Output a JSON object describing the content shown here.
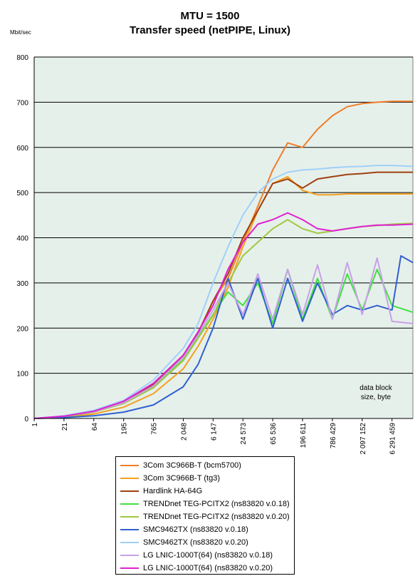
{
  "chart_data": {
    "type": "line",
    "title": "MTU = 1500",
    "subtitle": "Transfer speed (netPIPE, Linux)",
    "y_unit_label": "Mbit/sec",
    "annotation": [
      "data block",
      "size, byte"
    ],
    "ylim": [
      0,
      800
    ],
    "y_ticks": [
      "0",
      "100",
      "200",
      "300",
      "400",
      "500",
      "600",
      "700",
      "800"
    ],
    "x_ticks": [
      "1",
      "21",
      "64",
      "195",
      "765",
      "2 048",
      "6 147",
      "24 573",
      "65 536",
      "196 611",
      "786 429",
      "2 097 152",
      "6 291 459"
    ],
    "x_range": [
      0,
      12.7
    ],
    "grid": true,
    "plot_background": "#e6f0eb",
    "series": [
      {
        "name": "3Com 3C966B-T (bcm5700)",
        "color": "#f07d28",
        "points": [
          [
            0,
            0
          ],
          [
            1,
            5
          ],
          [
            2,
            15
          ],
          [
            3,
            35
          ],
          [
            4,
            75
          ],
          [
            5,
            140
          ],
          [
            5.5,
            190
          ],
          [
            6,
            260
          ],
          [
            6.5,
            310
          ],
          [
            7,
            390
          ],
          [
            7.5,
            470
          ],
          [
            8,
            550
          ],
          [
            8.5,
            610
          ],
          [
            9,
            600
          ],
          [
            9.5,
            640
          ],
          [
            10,
            670
          ],
          [
            10.5,
            690
          ],
          [
            11,
            697
          ],
          [
            11.5,
            700
          ],
          [
            12,
            702
          ],
          [
            12.7,
            702
          ]
        ]
      },
      {
        "name": "3Com 3C966B-T (tg3)",
        "color": "#f4a020",
        "points": [
          [
            0,
            0
          ],
          [
            1,
            3
          ],
          [
            2,
            10
          ],
          [
            3,
            25
          ],
          [
            4,
            55
          ],
          [
            5,
            110
          ],
          [
            5.5,
            160
          ],
          [
            6,
            220
          ],
          [
            6.5,
            290
          ],
          [
            7,
            380
          ],
          [
            7.5,
            460
          ],
          [
            8,
            520
          ],
          [
            8.5,
            535
          ],
          [
            9,
            505
          ],
          [
            9.5,
            495
          ],
          [
            10,
            495
          ],
          [
            10.5,
            497
          ],
          [
            11,
            497
          ],
          [
            11.5,
            497
          ],
          [
            12,
            497
          ],
          [
            12.7,
            497
          ]
        ]
      },
      {
        "name": "Hardlink HA-64G",
        "color": "#a04010",
        "points": [
          [
            0,
            0
          ],
          [
            1,
            5
          ],
          [
            2,
            15
          ],
          [
            3,
            35
          ],
          [
            4,
            75
          ],
          [
            5,
            140
          ],
          [
            5.5,
            190
          ],
          [
            6,
            260
          ],
          [
            6.5,
            320
          ],
          [
            7,
            400
          ],
          [
            7.5,
            460
          ],
          [
            8,
            520
          ],
          [
            8.5,
            530
          ],
          [
            9,
            510
          ],
          [
            9.5,
            530
          ],
          [
            10,
            535
          ],
          [
            10.5,
            540
          ],
          [
            11,
            542
          ],
          [
            11.5,
            545
          ],
          [
            12,
            545
          ],
          [
            12.7,
            545
          ]
        ]
      },
      {
        "name": "TRENDnet TEG-PCITX2 (ns83820 v.0.18)",
        "color": "#40e040",
        "points": [
          [
            0,
            0
          ],
          [
            1,
            5
          ],
          [
            2,
            15
          ],
          [
            3,
            35
          ],
          [
            4,
            70
          ],
          [
            5,
            130
          ],
          [
            5.5,
            180
          ],
          [
            6,
            230
          ],
          [
            6.5,
            280
          ],
          [
            7,
            250
          ],
          [
            7.5,
            300
          ],
          [
            8,
            210
          ],
          [
            8.5,
            330
          ],
          [
            9,
            220
          ],
          [
            9.5,
            310
          ],
          [
            10,
            220
          ],
          [
            10.5,
            320
          ],
          [
            11,
            240
          ],
          [
            11.5,
            330
          ],
          [
            12,
            250
          ],
          [
            12.7,
            235
          ]
        ]
      },
      {
        "name": "TRENDnet TEG-PCITX2 (ns83820 v.0.20)",
        "color": "#a0c840",
        "points": [
          [
            0,
            0
          ],
          [
            1,
            4
          ],
          [
            2,
            14
          ],
          [
            3,
            33
          ],
          [
            4,
            68
          ],
          [
            5,
            128
          ],
          [
            5.5,
            178
          ],
          [
            6,
            228
          ],
          [
            6.5,
            300
          ],
          [
            7,
            360
          ],
          [
            7.5,
            390
          ],
          [
            8,
            420
          ],
          [
            8.5,
            440
          ],
          [
            9,
            420
          ],
          [
            9.5,
            410
          ],
          [
            10,
            415
          ],
          [
            10.5,
            420
          ],
          [
            11,
            425
          ],
          [
            11.5,
            427
          ],
          [
            12,
            430
          ],
          [
            12.7,
            432
          ]
        ]
      },
      {
        "name": "SMC9462TX (ns83820 v.0.18)",
        "color": "#3060d0",
        "points": [
          [
            0,
            0
          ],
          [
            1,
            2
          ],
          [
            2,
            6
          ],
          [
            3,
            14
          ],
          [
            4,
            30
          ],
          [
            5,
            70
          ],
          [
            5.5,
            120
          ],
          [
            6,
            200
          ],
          [
            6.5,
            310
          ],
          [
            7,
            220
          ],
          [
            7.5,
            310
          ],
          [
            8,
            200
          ],
          [
            8.5,
            310
          ],
          [
            9,
            215
          ],
          [
            9.5,
            300
          ],
          [
            10,
            230
          ],
          [
            10.5,
            250
          ],
          [
            11,
            240
          ],
          [
            11.5,
            250
          ],
          [
            12,
            240
          ],
          [
            12.3,
            360
          ],
          [
            12.7,
            345
          ]
        ]
      },
      {
        "name": "SMC9462TX (ns83820 v.0.20)",
        "color": "#a0d0f8",
        "points": [
          [
            0,
            0
          ],
          [
            1,
            6
          ],
          [
            2,
            18
          ],
          [
            3,
            40
          ],
          [
            4,
            85
          ],
          [
            5,
            155
          ],
          [
            5.5,
            210
          ],
          [
            6,
            300
          ],
          [
            6.5,
            380
          ],
          [
            7,
            450
          ],
          [
            7.5,
            500
          ],
          [
            8,
            530
          ],
          [
            8.5,
            545
          ],
          [
            9,
            550
          ],
          [
            9.5,
            552
          ],
          [
            10,
            555
          ],
          [
            10.5,
            557
          ],
          [
            11,
            558
          ],
          [
            11.5,
            560
          ],
          [
            12,
            560
          ],
          [
            12.7,
            558
          ]
        ]
      },
      {
        "name": "LG LNIC-1000T(64) (ns83820 v.0.18)",
        "color": "#c8a0e8",
        "points": [
          [
            0,
            0
          ],
          [
            1,
            5
          ],
          [
            2,
            15
          ],
          [
            3,
            35
          ],
          [
            4,
            72
          ],
          [
            5,
            135
          ],
          [
            5.5,
            185
          ],
          [
            6,
            240
          ],
          [
            6.5,
            300
          ],
          [
            7,
            230
          ],
          [
            7.5,
            320
          ],
          [
            8,
            220
          ],
          [
            8.5,
            330
          ],
          [
            9,
            230
          ],
          [
            9.5,
            340
          ],
          [
            10,
            220
          ],
          [
            10.5,
            345
          ],
          [
            11,
            230
          ],
          [
            11.5,
            355
          ],
          [
            12,
            215
          ],
          [
            12.7,
            210
          ]
        ]
      },
      {
        "name": "LG LNIC-1000T(64) (ns83820 v.0.20)",
        "color": "#e020d0",
        "points": [
          [
            0,
            0
          ],
          [
            1,
            5
          ],
          [
            2,
            16
          ],
          [
            3,
            38
          ],
          [
            4,
            78
          ],
          [
            5,
            140
          ],
          [
            5.5,
            192
          ],
          [
            6,
            250
          ],
          [
            6.5,
            330
          ],
          [
            7,
            390
          ],
          [
            7.5,
            430
          ],
          [
            8,
            440
          ],
          [
            8.5,
            455
          ],
          [
            9,
            440
          ],
          [
            9.5,
            420
          ],
          [
            10,
            415
          ],
          [
            10.5,
            420
          ],
          [
            11,
            425
          ],
          [
            11.5,
            428
          ],
          [
            12,
            428
          ],
          [
            12.7,
            430
          ]
        ]
      }
    ]
  }
}
